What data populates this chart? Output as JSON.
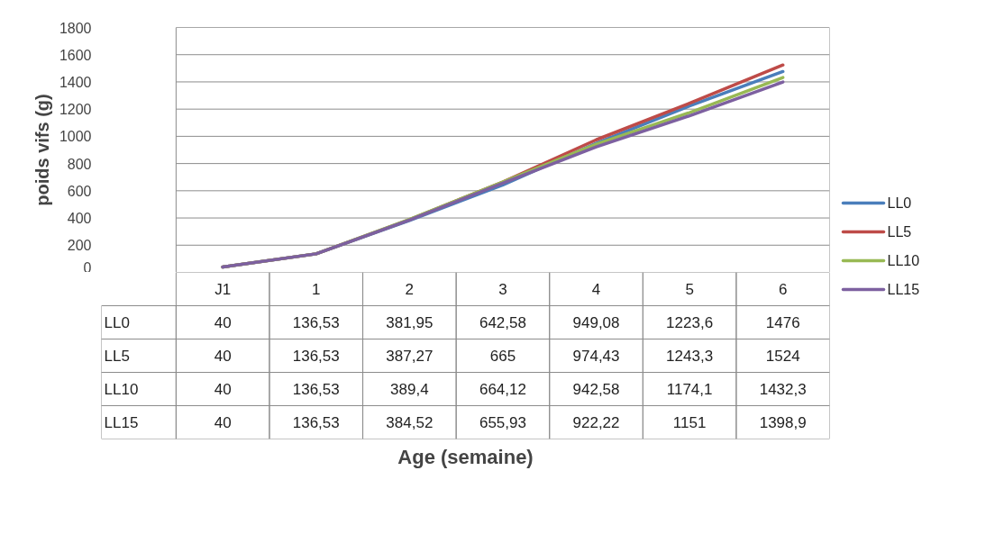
{
  "chart_data": {
    "type": "line",
    "annotations": [
      "Age (semaine)"
    ],
    "ylabel": "poids vifs (g)",
    "categories": [
      "J1",
      "1",
      "2",
      "3",
      "4",
      "5",
      "6"
    ],
    "series": [
      {
        "name": "LL0",
        "color": "#4a7ebb",
        "values": [
          40,
          136.53,
          381.95,
          642.58,
          949.08,
          1223.6,
          1476
        ],
        "value_labels": [
          "40",
          "136,53",
          "381,95",
          "642,58",
          "949,08",
          "1223,6",
          "1476"
        ]
      },
      {
        "name": "LL5",
        "color": "#be4b48",
        "values": [
          40,
          136.53,
          387.27,
          665,
          974.43,
          1243.3,
          1524
        ],
        "value_labels": [
          "40",
          "136,53",
          "387,27",
          "665",
          "974,43",
          "1243,3",
          "1524"
        ]
      },
      {
        "name": "LL10",
        "color": "#98b954",
        "values": [
          40,
          136.53,
          389.4,
          664.12,
          942.58,
          1174.1,
          1432.3
        ],
        "value_labels": [
          "40",
          "136,53",
          "389,4",
          "664,12",
          "942,58",
          "1174,1",
          "1432,3"
        ]
      },
      {
        "name": "LL15",
        "color": "#7d60a0",
        "values": [
          40,
          136.53,
          384.52,
          655.93,
          922.22,
          1151,
          1398.9
        ],
        "value_labels": [
          "40",
          "136,53",
          "384,52",
          "655,93",
          "922,22",
          "1151",
          "1398,9"
        ]
      }
    ],
    "ylim": [
      0,
      1800
    ],
    "yticks": [
      0,
      200,
      400,
      600,
      800,
      1000,
      1200,
      1400,
      1600,
      1800
    ],
    "grid": "y",
    "legend": "right"
  }
}
